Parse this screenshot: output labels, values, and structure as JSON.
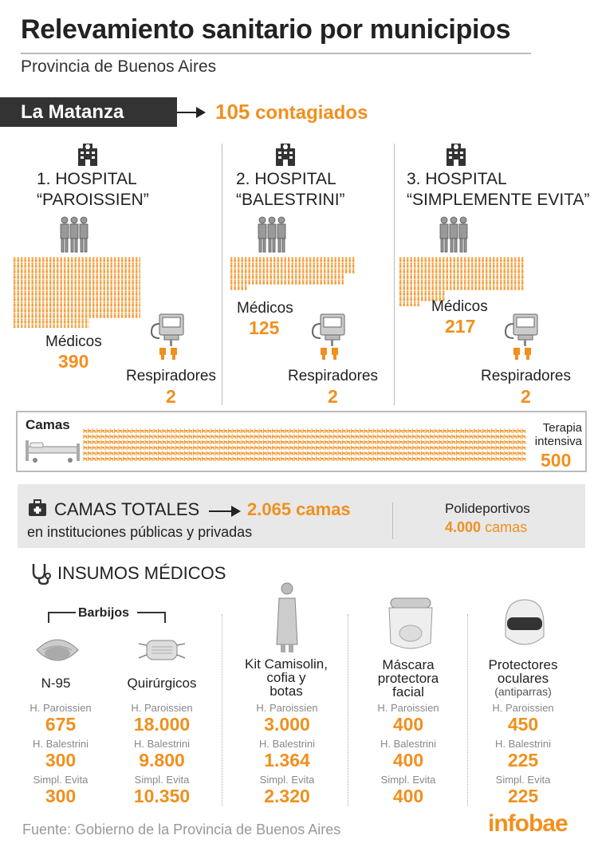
{
  "header": {
    "title": "Relevamiento sanitario por municipios",
    "subtitle": "Provincia de Buenos Aires"
  },
  "municipio": {
    "name": "La Matanza",
    "cases_number": "105",
    "cases_label": "contagiados"
  },
  "hospitals": [
    {
      "title_line1": "1. HOSPITAL",
      "title_line2": "“PAROISSIEN”",
      "medicos_label": "Médicos",
      "medicos": "390",
      "respiradores_label": "Respiradores",
      "respiradores": "2"
    },
    {
      "title_line1": "2. HOSPITAL",
      "title_line2": "“BALESTRINI”",
      "medicos_label": "Médicos",
      "medicos": "125",
      "respiradores_label": "Respiradores",
      "respiradores": "2"
    },
    {
      "title_line1": "3. HOSPITAL",
      "title_line2": "“SIMPLEMENTE EVITA”",
      "medicos_label": "Médicos",
      "medicos": "217",
      "respiradores_label": "Respiradores",
      "respiradores": "2"
    }
  ],
  "camas": {
    "label": "Camas",
    "terapia_line1": "Terapia",
    "terapia_line2": "intensiva",
    "terapia_value": "500"
  },
  "totales": {
    "label": "CAMAS TOTALES",
    "value": "2.065 camas",
    "sub": "en instituciones públicas y privadas",
    "poli_label": "Polideportivos",
    "poli_value_num": "4.000",
    "poli_value_unit": "camas"
  },
  "insumos": {
    "heading": "INSUMOS MÉDICOS",
    "barbijos_label": "Barbijos",
    "hospital_labels": [
      "H. Paroissien",
      "H. Balestrini",
      "Simpl. Evita"
    ],
    "items": [
      {
        "label_lines": [
          "N-95"
        ],
        "values": [
          "675",
          "300",
          "300"
        ]
      },
      {
        "label_lines": [
          "Quirúrgicos"
        ],
        "values": [
          "18.000",
          "9.800",
          "10.350"
        ]
      },
      {
        "label_lines": [
          "Kit Camisolin,",
          "cofia y",
          "botas"
        ],
        "values": [
          "3.000",
          "1.364",
          "2.320"
        ]
      },
      {
        "label_lines": [
          "Máscara",
          "protectora",
          "facial"
        ],
        "values": [
          "400",
          "400",
          "400"
        ]
      },
      {
        "label_lines": [
          "Protectores",
          "oculares"
        ],
        "sub": "(antiparras)",
        "values": [
          "450",
          "225",
          "225"
        ]
      }
    ]
  },
  "footer": {
    "source": "Fuente: Gobierno de la Provincia de Buenos Aires",
    "brand": "infobae"
  }
}
